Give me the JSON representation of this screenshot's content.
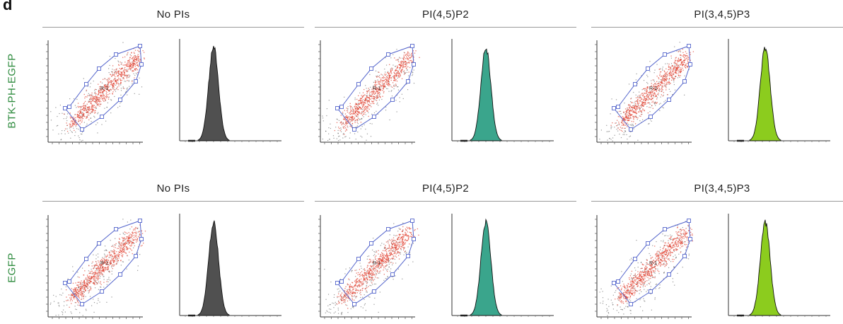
{
  "figure": {
    "panel_letter": "d",
    "rows": [
      {
        "label": "BTK-PH-EGFP"
      },
      {
        "label": "EGFP"
      }
    ],
    "conditions": [
      {
        "title": "No PIs",
        "hist_color": "#505050"
      },
      {
        "title": "PI(4,5)P2",
        "hist_color": "#3aa58c"
      },
      {
        "title": "PI(3,4,5)P3",
        "hist_color": "#8ccc1e"
      }
    ],
    "gate_label": "R-1",
    "gate_color": "#5566cc",
    "dot_color": "#e03a2a"
  }
}
